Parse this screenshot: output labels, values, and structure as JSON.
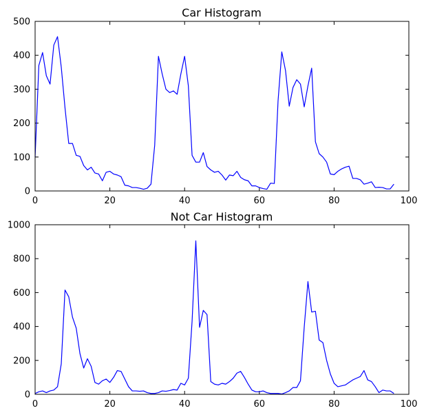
{
  "colors": {
    "series": "#0000ff",
    "axes": "#000000",
    "background": "#ffffff"
  },
  "chart_data": [
    {
      "type": "line",
      "title": "Car Histogram",
      "xlabel": "",
      "ylabel": "",
      "xlim": [
        0,
        100
      ],
      "ylim": [
        0,
        500
      ],
      "xticks": [
        0,
        20,
        40,
        60,
        80,
        100
      ],
      "yticks": [
        0,
        100,
        200,
        300,
        400,
        500
      ],
      "grid": false,
      "series": [
        {
          "values": [
            100,
            370,
            408,
            340,
            315,
            430,
            455,
            365,
            245,
            140,
            140,
            105,
            102,
            75,
            62,
            70,
            53,
            50,
            30,
            55,
            58,
            50,
            47,
            42,
            17,
            15,
            10,
            10,
            8,
            5,
            8,
            20,
            135,
            397,
            345,
            300,
            290,
            295,
            285,
            345,
            397,
            310,
            105,
            85,
            85,
            113,
            72,
            62,
            55,
            58,
            47,
            32,
            47,
            45,
            58,
            40,
            33,
            30,
            15,
            15,
            10,
            7,
            5,
            23,
            22,
            265,
            410,
            355,
            250,
            305,
            328,
            315,
            248,
            310,
            362,
            145,
            110,
            100,
            85,
            50,
            48,
            58,
            65,
            70,
            73,
            37,
            37,
            33,
            20,
            23,
            27,
            10,
            11,
            10,
            6,
            6,
            20
          ]
        }
      ]
    },
    {
      "type": "line",
      "title": "Not Car Histogram",
      "xlabel": "",
      "ylabel": "",
      "xlim": [
        0,
        100
      ],
      "ylim": [
        0,
        1000
      ],
      "xticks": [
        0,
        20,
        40,
        60,
        80,
        100
      ],
      "yticks": [
        0,
        200,
        400,
        600,
        800,
        1000
      ],
      "grid": false,
      "series": [
        {
          "values": [
            5,
            15,
            20,
            10,
            20,
            25,
            45,
            180,
            615,
            575,
            455,
            390,
            240,
            155,
            210,
            165,
            70,
            60,
            80,
            90,
            70,
            100,
            140,
            135,
            90,
            45,
            20,
            20,
            18,
            20,
            10,
            5,
            5,
            10,
            20,
            18,
            22,
            28,
            25,
            65,
            55,
            95,
            430,
            905,
            395,
            495,
            470,
            75,
            60,
            55,
            65,
            60,
            75,
            95,
            125,
            135,
            100,
            60,
            25,
            15,
            15,
            20,
            10,
            5,
            5,
            5,
            2,
            10,
            20,
            40,
            40,
            80,
            395,
            665,
            485,
            490,
            320,
            305,
            200,
            120,
            65,
            45,
            50,
            55,
            70,
            85,
            95,
            105,
            140,
            85,
            75,
            45,
            10,
            25,
            20,
            20,
            5
          ]
        }
      ]
    }
  ]
}
